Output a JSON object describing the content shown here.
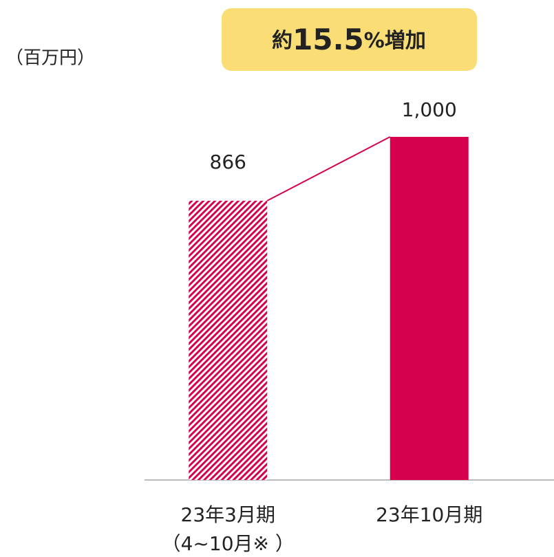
{
  "chart_data": {
    "type": "bar",
    "unit_label": "（百万円）",
    "annotation": {
      "prefix": "約",
      "number": "15.5",
      "suffix": "%増加"
    },
    "categories": [
      [
        "23年3月期",
        "（4~10月※ ）"
      ],
      [
        "23年10月期"
      ]
    ],
    "values": [
      866,
      1000
    ],
    "value_labels": [
      "866",
      "1,000"
    ],
    "styles": [
      "hatched",
      "solid"
    ],
    "color": "#d6004f",
    "ylim": [
      280,
      1000
    ]
  }
}
